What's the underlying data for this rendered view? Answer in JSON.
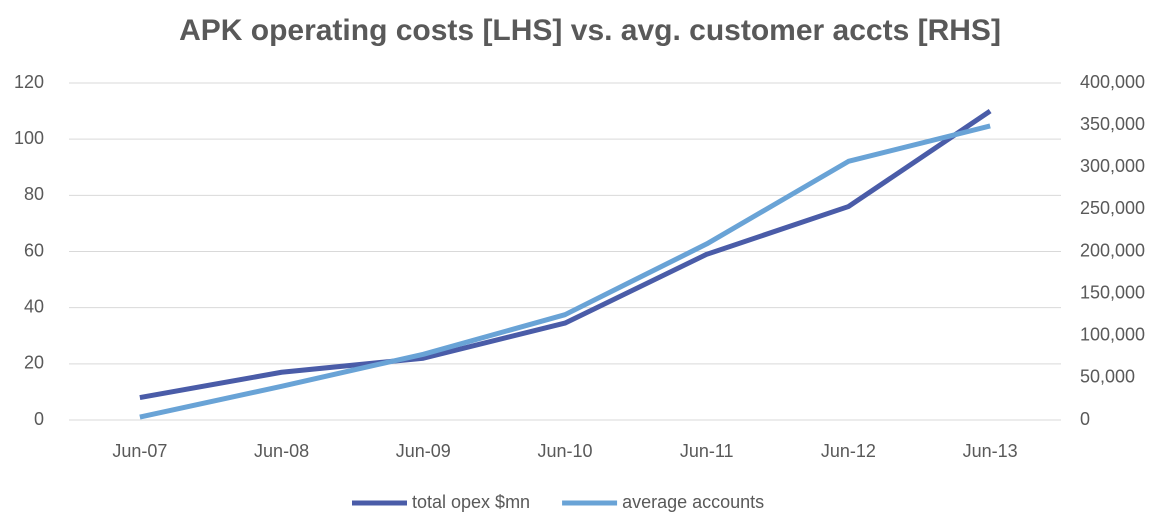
{
  "chart_data": {
    "type": "line",
    "title": "APK operating costs [LHS] vs. avg. customer accts [RHS]",
    "categories": [
      "Jun-07",
      "Jun-08",
      "Jun-09",
      "Jun-10",
      "Jun-11",
      "Jun-12",
      "Jun-13"
    ],
    "series": [
      {
        "name": "total opex $mn",
        "color": "#4a5ca8",
        "values": [
          8,
          17,
          22,
          34.5,
          59,
          76,
          110
        ]
      },
      {
        "name": "average accounts",
        "color": "#69a3d6",
        "axis": "y2",
        "values": [
          3500,
          40000,
          78000,
          125000,
          209000,
          307000,
          349000
        ]
      }
    ],
    "ylim": [
      0,
      120
    ],
    "yticks": [
      0,
      20,
      40,
      60,
      80,
      100,
      120
    ],
    "y2lim": [
      0,
      400000
    ],
    "y2ticks": [
      0,
      {
        "value": 50000,
        "label": "50,000"
      },
      {
        "value": 100000,
        "label": "100,000"
      },
      {
        "value": 150000,
        "label": "150,000"
      },
      {
        "value": 200000,
        "label": "200,000"
      },
      {
        "value": 250000,
        "label": "250,000"
      },
      {
        "value": 300000,
        "label": "300,000"
      },
      {
        "value": 350000,
        "label": "350,000"
      },
      {
        "value": 400000,
        "label": "400,000"
      }
    ],
    "grid": true,
    "legend": "bottom"
  }
}
